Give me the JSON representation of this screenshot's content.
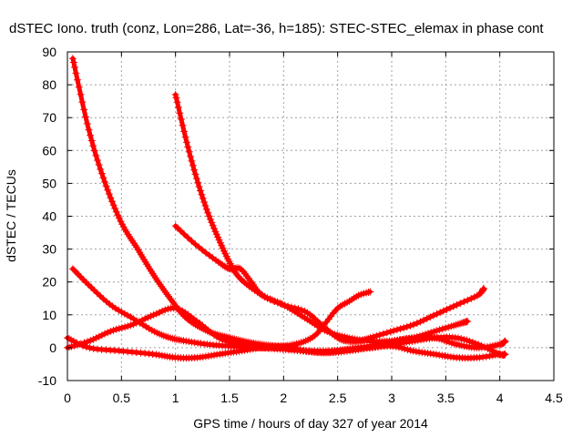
{
  "chart_data": {
    "type": "line",
    "title": "dSTEC Iono. truth (conz, Lon=286, Lat=-36, h=185): STEC-STEC_elemax in phase cont",
    "xlabel": "GPS time / hours of day 327 of year 2014",
    "ylabel": "dSTEC  / TECUs",
    "xlim": [
      0,
      4.5
    ],
    "ylim": [
      -10,
      90
    ],
    "xticks": [
      "0",
      "0.5",
      "1",
      "1.5",
      "2",
      "2.5",
      "3",
      "3.5",
      "4",
      "4.5"
    ],
    "yticks": [
      "-10",
      "0",
      "10",
      "20",
      "30",
      "40",
      "50",
      "60",
      "70",
      "80",
      "90"
    ],
    "grid": true,
    "marker": "plus",
    "color": "#ff0000",
    "series": [
      {
        "x": [
          0.05,
          0.2,
          0.35,
          0.5,
          0.65,
          0.8,
          0.95,
          1.1,
          1.3,
          1.5,
          1.7,
          1.9,
          2.0
        ],
        "y": [
          88,
          66,
          50,
          38,
          30,
          22,
          15,
          9,
          5,
          3,
          1.5,
          0.5,
          0
        ]
      },
      {
        "x": [
          0.05,
          0.2,
          0.4,
          0.6,
          0.8,
          0.95,
          1.1,
          1.3,
          1.5,
          1.7,
          1.85,
          1.95
        ],
        "y": [
          24,
          19,
          13,
          9,
          5,
          3,
          2,
          1,
          0.5,
          0.2,
          0,
          0
        ]
      },
      {
        "x": [
          0,
          0.2,
          0.4,
          0.6,
          0.8,
          1.0,
          1.2,
          1.4,
          1.6,
          1.8,
          2.0,
          2.2,
          2.4,
          2.6,
          2.8,
          3.0,
          3.2,
          3.4,
          3.6,
          3.8,
          4.0,
          4.05
        ],
        "y": [
          0,
          2,
          5,
          7,
          10,
          12,
          8,
          3,
          1,
          0,
          -0.5,
          -1,
          -1,
          -0.5,
          0,
          1,
          2,
          3,
          3,
          1,
          -2,
          -2
        ]
      },
      {
        "x": [
          0,
          0.2,
          0.5,
          0.8,
          1.0,
          1.2,
          1.4,
          1.6,
          1.8,
          2.0,
          2.2,
          2.4,
          2.6,
          2.8,
          3.0,
          3.2,
          3.4,
          3.6,
          3.7
        ],
        "y": [
          3,
          0,
          -1,
          -2,
          -3,
          -3,
          -2,
          -1,
          0,
          0.5,
          -1,
          -1.5,
          -0.5,
          0.5,
          2,
          3,
          5,
          7,
          8
        ]
      },
      {
        "x": [
          1.0,
          1.1,
          1.2,
          1.3,
          1.4,
          1.5,
          1.6,
          1.8,
          2.0,
          2.2,
          2.4,
          2.6,
          2.8,
          3.0,
          3.2,
          3.4,
          3.6,
          3.8,
          4.0,
          4.05
        ],
        "y": [
          77,
          63,
          51,
          41,
          33,
          26,
          21,
          16,
          13,
          9,
          5,
          3,
          2,
          2,
          3,
          3,
          1,
          0,
          1,
          2
        ]
      },
      {
        "x": [
          1.0,
          1.2,
          1.4,
          1.5,
          1.6,
          1.7,
          1.8,
          2.0,
          2.2,
          2.35,
          2.5,
          2.6,
          2.7,
          2.8,
          3.0,
          3.2,
          3.4,
          3.6,
          3.8,
          3.85
        ],
        "y": [
          37,
          31,
          26,
          24,
          24,
          20,
          16,
          13,
          11,
          7,
          3,
          2,
          2,
          3,
          5,
          7,
          10,
          13,
          16,
          18
        ]
      },
      {
        "x": [
          1.7,
          1.85,
          2.0,
          2.1,
          2.2,
          2.3,
          2.4,
          2.5,
          2.6,
          2.7,
          2.8
        ],
        "y": [
          0,
          0,
          0.5,
          1,
          2,
          4,
          8,
          12,
          14,
          16,
          17
        ]
      },
      {
        "x": [
          2.0,
          2.2,
          2.4,
          2.6,
          2.8,
          3.0,
          3.2,
          3.4,
          3.6,
          3.8,
          4.0
        ],
        "y": [
          0,
          -1,
          -1.5,
          -1,
          0,
          0.5,
          -1,
          -2,
          -3,
          -3,
          -2
        ]
      }
    ]
  }
}
